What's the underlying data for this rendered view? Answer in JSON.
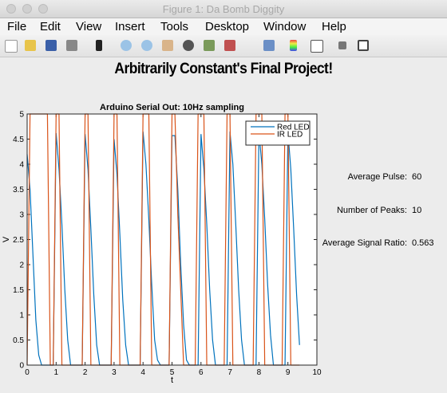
{
  "window": {
    "title": "Figure 1: Da Bomb Diggity"
  },
  "menu": [
    "File",
    "Edit",
    "View",
    "Insert",
    "Tools",
    "Desktop",
    "Window",
    "Help"
  ],
  "heading": "Arbitrarily Constant's Final Project!",
  "chart_data": {
    "type": "line",
    "title": "Arduino Serial Out: 10Hz sampling",
    "x_label": "t",
    "y_label": "V",
    "x": [
      0,
      0.1,
      0.2,
      0.3,
      0.4,
      0.5,
      0.6,
      0.7,
      0.8,
      0.9,
      1,
      1.1,
      1.2,
      1.3,
      1.4,
      1.5,
      1.6,
      1.7,
      1.8,
      1.9,
      2,
      2.1,
      2.2,
      2.3,
      2.4,
      2.5,
      2.6,
      2.7,
      2.8,
      2.9,
      3,
      3.1,
      3.2,
      3.3,
      3.4,
      3.5,
      3.6,
      3.7,
      3.8,
      3.9,
      4,
      4.1,
      4.2,
      4.3,
      4.4,
      4.5,
      4.6,
      4.7,
      4.8,
      4.9,
      5,
      5.1,
      5.2,
      5.3,
      5.4,
      5.5,
      5.6,
      5.7,
      5.8,
      5.9,
      6,
      6.1,
      6.2,
      6.3,
      6.4,
      6.5,
      6.6,
      6.7,
      6.8,
      6.9,
      7,
      7.1,
      7.2,
      7.3,
      7.4,
      7.5,
      7.6,
      7.7,
      7.8,
      7.9,
      8,
      8.1,
      8.2,
      8.3,
      8.4,
      8.5,
      8.6,
      8.7,
      8.8,
      8.9,
      9,
      9.1,
      9.2,
      9.3,
      9.4
    ],
    "series": [
      {
        "name": "Red LED",
        "color": "#0072bd",
        "values": [
          4.2,
          3.5,
          2.2,
          0.9,
          0.2,
          0,
          0,
          0,
          0,
          0,
          4.62,
          3.9,
          2.8,
          1.5,
          0.5,
          0,
          0,
          0,
          0,
          0,
          4.6,
          3.9,
          2.7,
          1.4,
          0.4,
          0,
          0,
          0,
          0,
          0,
          4.5,
          3.8,
          2.6,
          1.3,
          0.4,
          0,
          0,
          0,
          0,
          0,
          4.65,
          4.0,
          2.9,
          1.6,
          0.5,
          0.1,
          0,
          0,
          0,
          0,
          4.57,
          4.57,
          3.5,
          2.0,
          0.8,
          0.1,
          0,
          0,
          0,
          0,
          4.6,
          3.9,
          2.8,
          1.5,
          0.5,
          0,
          0,
          0,
          0,
          0,
          4.65,
          4.0,
          2.8,
          1.5,
          0.5,
          0,
          0,
          0,
          0,
          0,
          4.65,
          4.0,
          2.9,
          1.6,
          0.6,
          0,
          0,
          0,
          0,
          0,
          4.65,
          3.9,
          2.7,
          1.4,
          0.4
        ]
      },
      {
        "name": "IR LED",
        "color": "#d95319",
        "values": [
          0,
          5,
          5,
          5,
          5,
          5,
          5,
          5,
          0,
          0,
          5,
          5,
          0,
          0,
          0,
          0,
          0,
          0,
          0,
          0,
          5,
          5,
          0,
          0,
          0,
          0,
          0,
          0,
          0,
          0,
          5,
          5,
          0,
          0,
          0,
          0,
          0,
          0,
          0,
          0,
          5,
          5,
          5,
          0,
          0,
          0,
          0,
          0,
          0,
          0,
          5,
          5,
          3,
          1.5,
          0,
          0,
          0,
          0,
          0,
          5,
          5,
          5,
          0,
          0,
          0,
          0,
          0,
          0,
          0,
          5,
          5,
          0,
          0,
          0,
          0,
          0,
          0,
          0,
          0,
          5,
          5,
          5,
          0,
          0,
          0,
          0,
          0,
          0,
          0,
          5,
          5,
          0,
          0,
          0,
          0
        ]
      }
    ],
    "xlim": [
      0,
      10
    ],
    "xticks": [
      0,
      1,
      2,
      3,
      4,
      5,
      6,
      7,
      8,
      9,
      10
    ],
    "ylim": [
      0,
      5
    ],
    "yticks": [
      0,
      0.5,
      1,
      1.5,
      2,
      2.5,
      3,
      3.5,
      4,
      4.5,
      5
    ],
    "legend": "top-right"
  },
  "info": [
    {
      "label": "Average Pulse:",
      "value": 60
    },
    {
      "label": "Number of Peaks:",
      "value": 10
    },
    {
      "label": "Average Signal Ratio:",
      "value": 0.563
    }
  ]
}
